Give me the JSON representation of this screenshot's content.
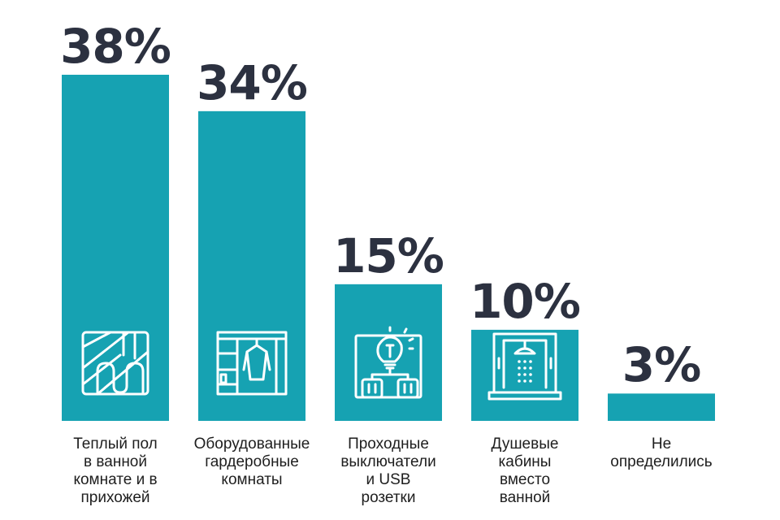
{
  "chart_data": {
    "type": "bar",
    "categories": [
      "Теплый пол\nв ванной\nкомнате и в\nприхожей",
      "Оборудованные\nгардеробные\nкомнаты",
      "Проходные\nвыключатели\nи USB\nрозетки",
      "Душевые\nкабины\nвместо\nванной",
      "Не\nопределились"
    ],
    "values": [
      38,
      34,
      15,
      10,
      3
    ],
    "value_labels": [
      "38%",
      "34%",
      "15%",
      "10%",
      "3%"
    ],
    "icons": [
      "heated-floor-icon",
      "wardrobe-icon",
      "switch-usb-icon",
      "shower-cabin-icon",
      ""
    ],
    "title": "",
    "xlabel": "",
    "ylabel": "",
    "ylim": [
      0,
      38
    ],
    "grid": false,
    "bar_color": "#16a2b2",
    "value_color": "#2c3140"
  }
}
